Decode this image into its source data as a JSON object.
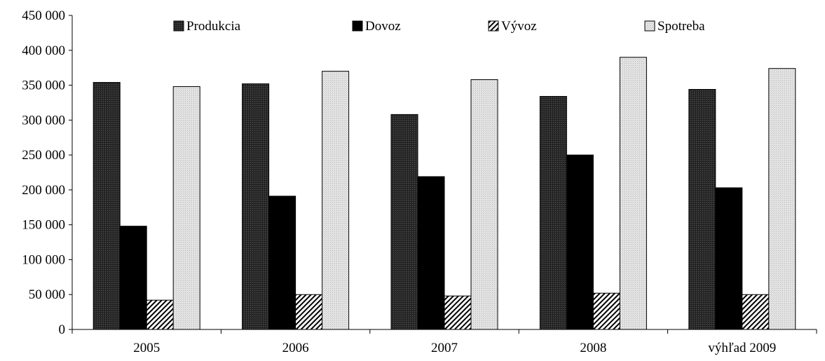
{
  "chart_data": {
    "type": "bar",
    "categories": [
      "2005",
      "2006",
      "2007",
      "2008",
      "výhľad 2009"
    ],
    "series": [
      {
        "name": "Produkcia",
        "values": [
          354000,
          352000,
          308000,
          334000,
          344000
        ]
      },
      {
        "name": "Dovoz",
        "values": [
          148000,
          191000,
          219000,
          250000,
          203000
        ]
      },
      {
        "name": "Vývoz",
        "values": [
          42000,
          50000,
          48000,
          52000,
          50000
        ]
      },
      {
        "name": "Spotreba",
        "values": [
          348000,
          370000,
          358000,
          390000,
          374000
        ]
      }
    ],
    "ylim": [
      0,
      450000
    ],
    "yticks": [
      0,
      50000,
      100000,
      150000,
      200000,
      250000,
      300000,
      350000,
      400000,
      450000
    ],
    "ytick_labels": [
      "0",
      "50 000",
      "100 000",
      "150 000",
      "200 000",
      "250 000",
      "300 000",
      "350 000",
      "400 000",
      "450 000"
    ],
    "grid": false,
    "legend_position": "top",
    "series_styles": [
      "dark-crosshatch",
      "solid-black",
      "diagonal-hatch",
      "light-dotted"
    ]
  }
}
